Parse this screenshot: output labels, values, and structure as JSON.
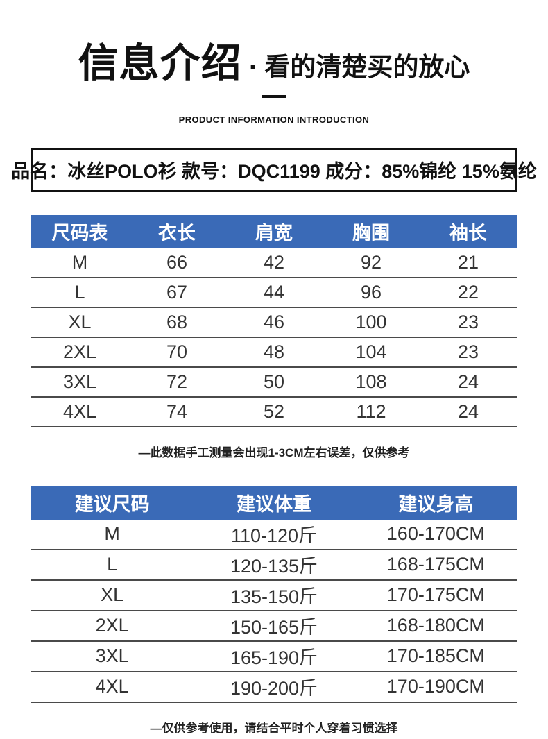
{
  "header": {
    "title": "信息介绍",
    "dot": "·",
    "subtitle": "看的清楚买的放心",
    "tagline": "PRODUCT INFORMATION INTRODUCTION"
  },
  "product_info": {
    "text": "品名：冰丝POLO衫 款号：DQC1199 成分：85%锦纶 15%氨纶"
  },
  "size_table": {
    "headers": [
      "尺码表",
      "衣长",
      "肩宽",
      "胸围",
      "袖长"
    ],
    "rows": [
      [
        "M",
        "66",
        "42",
        "92",
        "21"
      ],
      [
        "L",
        "67",
        "44",
        "96",
        "22"
      ],
      [
        "XL",
        "68",
        "46",
        "100",
        "23"
      ],
      [
        "2XL",
        "70",
        "48",
        "104",
        "23"
      ],
      [
        "3XL",
        "72",
        "50",
        "108",
        "24"
      ],
      [
        "4XL",
        "74",
        "52",
        "112",
        "24"
      ]
    ],
    "note": "—此数据手工测量会出现1-3CM左右误差，仅供参考"
  },
  "suggestion_table": {
    "headers": [
      "建议尺码",
      "建议体重",
      "建议身高"
    ],
    "rows": [
      [
        "M",
        "110-120斤",
        "160-170CM"
      ],
      [
        "L",
        "120-135斤",
        "168-175CM"
      ],
      [
        "XL",
        "135-150斤",
        "170-175CM"
      ],
      [
        "2XL",
        "150-165斤",
        "168-180CM"
      ],
      [
        "3XL",
        "165-190斤",
        "170-185CM"
      ],
      [
        "4XL",
        "190-200斤",
        "170-190CM"
      ]
    ],
    "note": "—仅供参考使用，请结合平时个人穿着习惯选择"
  },
  "colors": {
    "table_header_bg": "#3a6ab7",
    "table_header_text": "#ffffff",
    "body_text": "#333333",
    "divider": "#4a4a4a"
  }
}
